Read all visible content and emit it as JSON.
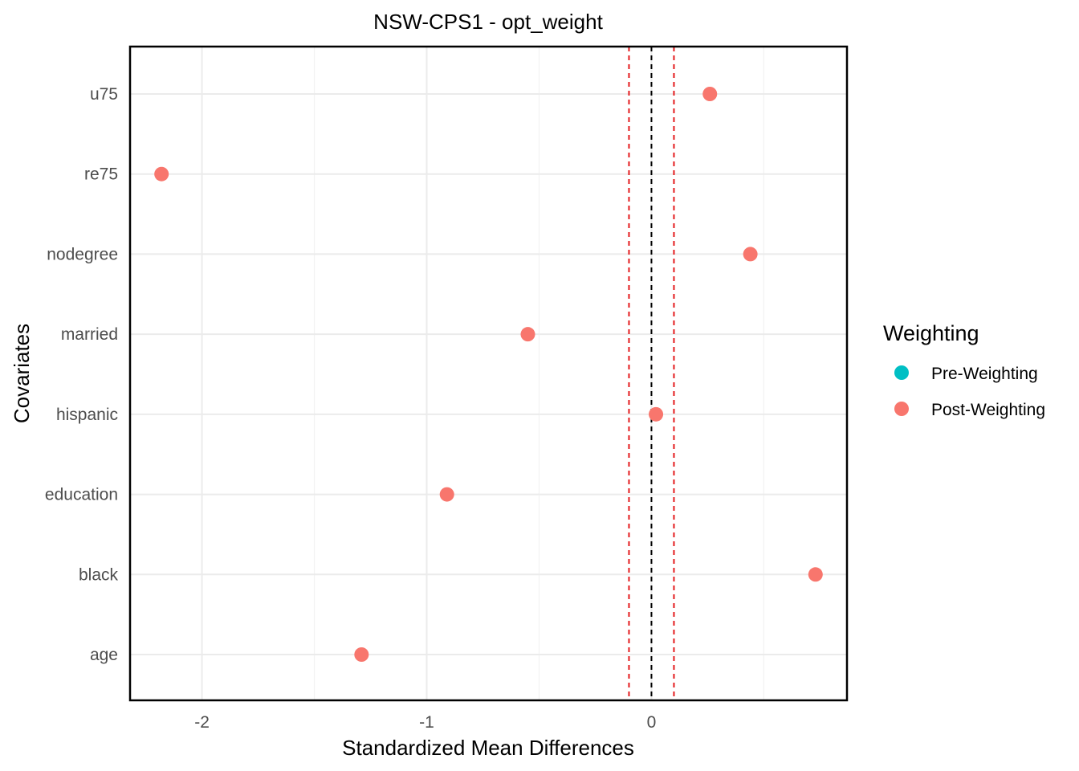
{
  "chart_data": {
    "type": "scatter",
    "title": "NSW-CPS1 - opt_weight",
    "xlabel": "Standardized Mean Differences",
    "ylabel": "Covariates",
    "categories": [
      "age",
      "black",
      "education",
      "hispanic",
      "married",
      "nodegree",
      "re75",
      "u75"
    ],
    "x_ticks": [
      -2,
      -1,
      0
    ],
    "x_tick_labels": [
      "-2",
      "-1",
      "0"
    ],
    "xlim": [
      -2.32,
      0.87
    ],
    "grid": true,
    "reference_lines": [
      {
        "x": 0,
        "color": "#000000",
        "style": "dashed"
      },
      {
        "x": -0.1,
        "color": "#e41a1c",
        "style": "dashed"
      },
      {
        "x": 0.1,
        "color": "#e41a1c",
        "style": "dashed"
      }
    ],
    "legend": {
      "title": "Weighting",
      "position": "right",
      "entries": [
        {
          "name": "Pre-Weighting",
          "color": "#00bfc4"
        },
        {
          "name": "Post-Weighting",
          "color": "#f8766d"
        }
      ]
    },
    "series": [
      {
        "name": "Post-Weighting",
        "color": "#f8766d",
        "points": [
          {
            "covariate": "age",
            "value": -1.29
          },
          {
            "covariate": "black",
            "value": 0.73
          },
          {
            "covariate": "education",
            "value": -0.91
          },
          {
            "covariate": "hispanic",
            "value": 0.02
          },
          {
            "covariate": "married",
            "value": -0.55
          },
          {
            "covariate": "nodegree",
            "value": 0.44
          },
          {
            "covariate": "re75",
            "value": -2.18
          },
          {
            "covariate": "u75",
            "value": 0.26
          }
        ]
      }
    ]
  }
}
